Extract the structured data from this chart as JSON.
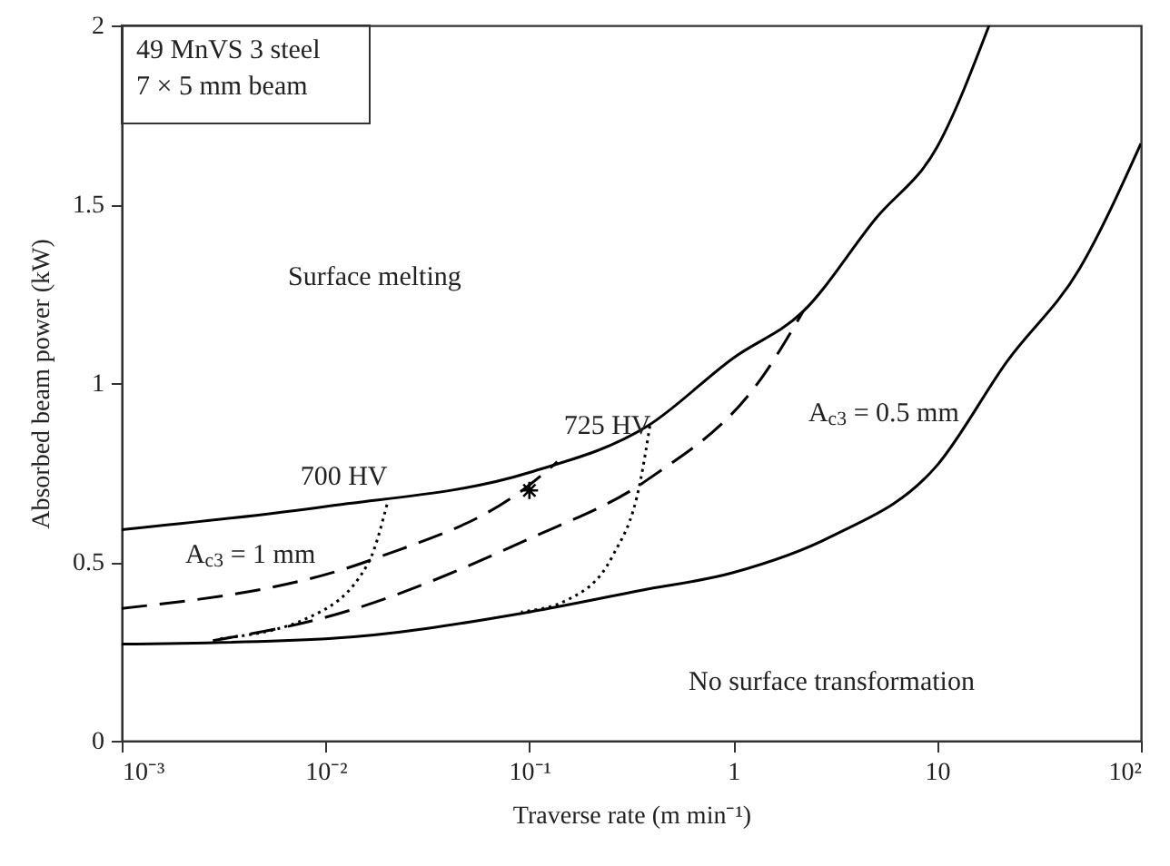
{
  "chart_data": {
    "type": "line",
    "xlabel": "Traverse rate (m min⁻¹)",
    "ylabel": "Absorbed beam power (kW)",
    "log": "x",
    "xlim": [
      0.001,
      100
    ],
    "ylim": [
      0,
      2
    ],
    "xticks": [
      {
        "value": 0.001,
        "label": "10⁻³"
      },
      {
        "value": 0.01,
        "label": "10⁻²"
      },
      {
        "value": 0.1,
        "label": "10⁻¹"
      },
      1,
      10,
      {
        "value": 100,
        "label": "10²"
      }
    ],
    "yticks": [
      0,
      0.5,
      1,
      1.5,
      2
    ],
    "grid": false,
    "series": [
      {
        "color": "#000000",
        "line_style": "solid",
        "x": [
          0.001,
          0.01,
          0.1,
          0.38,
          1,
          2.2,
          5,
          10,
          18
        ],
        "values": [
          0.59,
          0.655,
          0.75,
          0.88,
          1.07,
          1.2,
          1.46,
          1.66,
          2.0
        ]
      },
      {
        "color": "#000000",
        "line_style": "solid",
        "x": [
          0.001,
          0.01,
          0.1,
          0.35,
          1,
          3,
          10,
          22,
          50,
          100
        ],
        "values": [
          0.27,
          0.285,
          0.36,
          0.42,
          0.47,
          0.57,
          0.77,
          1.06,
          1.32,
          1.67
        ]
      },
      {
        "color": "#000000",
        "line_style": "dashed",
        "x": [
          0.001,
          0.0176,
          0.1,
          0.137
        ],
        "values": [
          0.37,
          0.51,
          0.715,
          0.78
        ]
      },
      {
        "color": "#000000",
        "line_style": "dashed",
        "x": [
          0.0028,
          0.01,
          0.1,
          0.38,
          1.4,
          2.2
        ],
        "values": [
          0.28,
          0.345,
          0.565,
          0.73,
          1.02,
          1.2
        ]
      },
      {
        "color": "#000000",
        "line_style": "dotted",
        "x": [
          0.02,
          0.0163,
          0.0083,
          0.003
        ],
        "values": [
          0.66,
          0.5,
          0.345,
          0.285
        ]
      },
      {
        "color": "#000000",
        "line_style": "dotted",
        "x": [
          0.39,
          0.35,
          0.255,
          0.155,
          0.091
        ],
        "values": [
          0.88,
          0.725,
          0.515,
          0.395,
          0.36
        ]
      },
      {
        "type": "scatter",
        "marker": "cross",
        "color": "#000000",
        "x": [
          0.1
        ],
        "values": [
          0.7
        ]
      }
    ],
    "annotations": [
      "49 MnVS 3 steel\n7 × 5 mm beam",
      "Surface melting",
      "No surface transformation",
      "700 HV",
      "725 HV",
      "A$_{c3}$ = 1 mm",
      "A$_{c3}$ = 0.5 mm"
    ]
  }
}
